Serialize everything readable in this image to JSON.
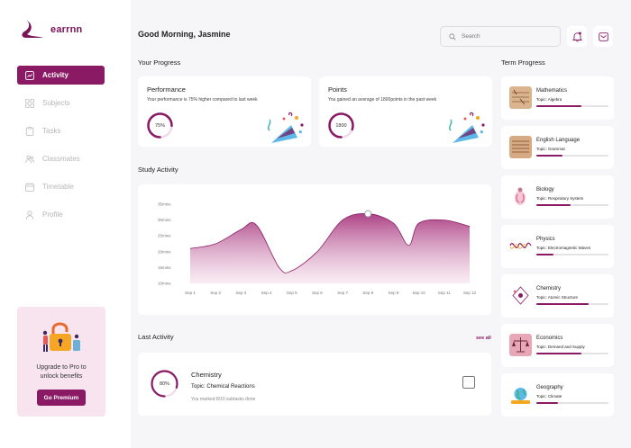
{
  "brand": {
    "name": "earrnn",
    "color": "#8b1a65"
  },
  "sidebar": {
    "items": [
      {
        "label": "Activity",
        "icon": "chart-box-icon",
        "active": true
      },
      {
        "label": "Subjects",
        "icon": "grid-icon",
        "active": false
      },
      {
        "label": "Tasks",
        "icon": "clipboard-icon",
        "active": false
      },
      {
        "label": "Classmates",
        "icon": "people-icon",
        "active": false
      },
      {
        "label": "Timetable",
        "icon": "calendar-icon",
        "active": false
      },
      {
        "label": "Profile",
        "icon": "user-icon",
        "active": false
      }
    ],
    "promo": {
      "text_line1": "Upgrade to Pro to",
      "text_line2": "unlock benefits",
      "button": "Go Premium"
    }
  },
  "header": {
    "greeting": "Good Morning, Jasmine",
    "search_placeholder": "Search"
  },
  "progress": {
    "title": "Your Progress",
    "performance": {
      "title": "Performance",
      "subtitle": "Your performance is 75% higher compared to last week",
      "value_label": "75%",
      "fraction": 0.75
    },
    "points": {
      "title": "Points",
      "subtitle": "You gained an average of 1800points in the past week",
      "value_label": "1800",
      "fraction": 0.8
    }
  },
  "study": {
    "title": "Study Activity"
  },
  "chart_data": {
    "type": "area",
    "title": "",
    "xlabel": "",
    "ylabel": "",
    "categories": [
      "Sep 1",
      "Sep 2",
      "Sep 3",
      "Sep 4",
      "Sep 5",
      "Sep 6",
      "Sep 7",
      "Sep 8",
      "Sep 9",
      "Sep 10",
      "Sep 11",
      "Sep 12"
    ],
    "y_ticks": [
      "10mins",
      "15mins",
      "20mins",
      "25mins",
      "30mins",
      "35mins"
    ],
    "ylim": [
      10,
      35
    ],
    "x": [
      1,
      2,
      3,
      3.6,
      4.5,
      5,
      6,
      7,
      8,
      9,
      9.6,
      10,
      11,
      12
    ],
    "values": [
      21,
      22.5,
      27,
      28.5,
      15,
      14,
      20,
      30,
      32,
      29,
      22,
      29,
      30,
      28
    ],
    "highlight_x": 8,
    "color": "#8b1a65"
  },
  "last_activity": {
    "title": "Last Activity",
    "see_all": "see all",
    "item": {
      "percent_label": "80%",
      "fraction": 0.8,
      "subject": "Chemistry",
      "topic": "Topic: Chemical Reactions",
      "note": "You marked 8/10 subtasks done"
    }
  },
  "term": {
    "title": "Term Progress",
    "items": [
      {
        "subject": "Mathematics",
        "topic": "Topic: Algebra",
        "progress": 0.62,
        "thumb": "math-thumb-icon"
      },
      {
        "subject": "English Language",
        "topic": "Topic: Grammar",
        "progress": 0.36,
        "thumb": "english-thumb-icon"
      },
      {
        "subject": "Biology",
        "topic": "Topic: Respiratory System",
        "progress": 0.48,
        "thumb": "biology-thumb-icon"
      },
      {
        "subject": "Physics",
        "topic": "Topic: Electromagnetic Waves",
        "progress": 0.24,
        "thumb": "physics-thumb-icon"
      },
      {
        "subject": "Chemistry",
        "topic": "Topic: Atomic Structure",
        "progress": 0.72,
        "thumb": "chemistry-thumb-icon"
      },
      {
        "subject": "Economics",
        "topic": "Topic: Demand and Supply",
        "progress": 0.62,
        "thumb": "economics-thumb-icon"
      },
      {
        "subject": "Geography",
        "topic": "Topic: Climate",
        "progress": 0.3,
        "thumb": "geography-thumb-icon"
      }
    ]
  }
}
